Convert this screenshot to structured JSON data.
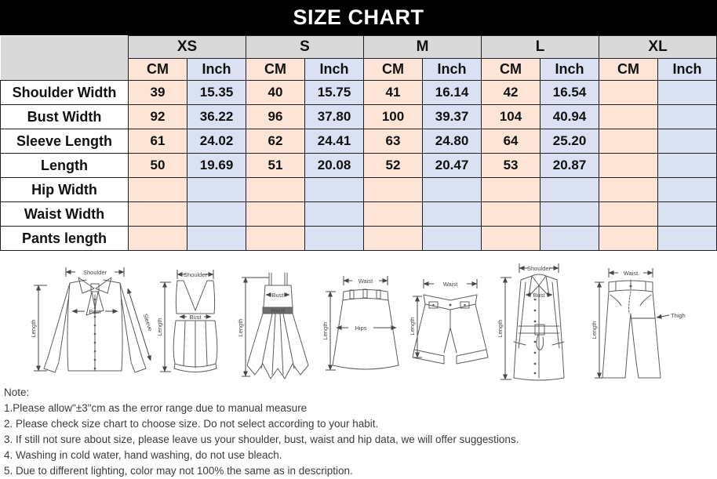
{
  "title": "SIZE CHART",
  "table": {
    "sizes": [
      "XS",
      "S",
      "M",
      "L",
      "XL"
    ],
    "unit_cm": "CM",
    "unit_inch": "Inch",
    "rows": [
      {
        "label": "Shoulder Width",
        "values": [
          "39",
          "15.35",
          "40",
          "15.75",
          "41",
          "16.14",
          "42",
          "16.54",
          "",
          ""
        ]
      },
      {
        "label": "Bust Width",
        "values": [
          "92",
          "36.22",
          "96",
          "37.80",
          "100",
          "39.37",
          "104",
          "40.94",
          "",
          ""
        ]
      },
      {
        "label": "Sleeve Length",
        "values": [
          "61",
          "24.02",
          "62",
          "24.41",
          "63",
          "24.80",
          "64",
          "25.20",
          "",
          ""
        ]
      },
      {
        "label": "Length",
        "values": [
          "50",
          "19.69",
          "51",
          "20.08",
          "52",
          "20.47",
          "53",
          "20.87",
          "",
          ""
        ]
      },
      {
        "label": "Hip Width",
        "values": [
          "",
          "",
          "",
          "",
          "",
          "",
          "",
          "",
          "",
          ""
        ]
      },
      {
        "label": "Waist Width",
        "values": [
          "",
          "",
          "",
          "",
          "",
          "",
          "",
          "",
          "",
          ""
        ]
      },
      {
        "label": "Pants length",
        "values": [
          "",
          "",
          "",
          "",
          "",
          "",
          "",
          "",
          "",
          ""
        ]
      }
    ]
  },
  "diagrams": [
    {
      "name": "blouse",
      "labels": {
        "shoulder": "Shoulder",
        "length": "Length",
        "bust": "Bust",
        "sleeve": "Sleeve"
      }
    },
    {
      "name": "vest-top",
      "labels": {
        "shoulder": "Shoulder",
        "length": "Length",
        "bust": "Bust"
      }
    },
    {
      "name": "dress",
      "labels": {
        "length": "Length",
        "bust": "Bust",
        "waist": "Waist"
      }
    },
    {
      "name": "skirt",
      "labels": {
        "waist": "Waist",
        "length": "Length",
        "hips": "Hips"
      }
    },
    {
      "name": "shorts",
      "labels": {
        "waist": "Waist",
        "length": "Length"
      }
    },
    {
      "name": "coat",
      "labels": {
        "shoulder": "Shoulder",
        "length": "Length",
        "bust": "Bust"
      }
    },
    {
      "name": "pants",
      "labels": {
        "waist": "Waist",
        "length": "Length",
        "thigh": "Thigh"
      }
    }
  ],
  "notes": {
    "heading": "Note:",
    "items": [
      "1.Please allow\"±3\"cm as the error range due to manual measure",
      "2. Please check size chart to choose size. Do not select according to your habit.",
      "3. If still not sure about size, please leave us your shoulder, bust, waist and hip data, we will offer suggestions.",
      "4. Washing in cold water, hand washing, do not use bleach.",
      "5. Due to different lighting, color may not 100% the same as in description."
    ]
  },
  "colors": {
    "title_bg": "#000000",
    "title_fg": "#FFFFFF",
    "size_header_bg": "#D9D9D9",
    "cm_col_bg": "#FCE4D6",
    "inch_col_bg": "#D9E1F2",
    "grid_line": "#1F1F1F"
  }
}
